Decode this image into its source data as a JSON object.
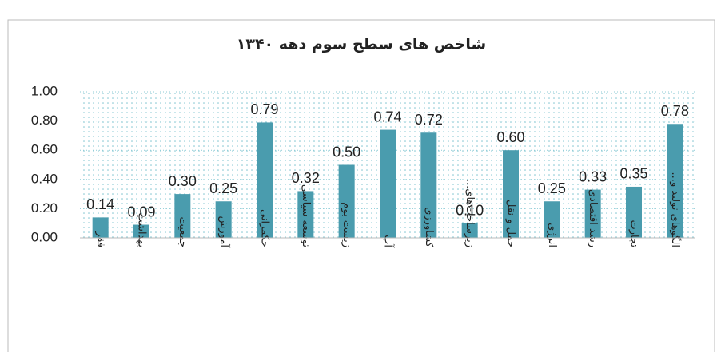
{
  "chart_data": {
    "type": "bar",
    "title": "شاخص های سطح سوم دهه ۱۳۴۰",
    "categories": [
      "فقر",
      "بهداشت",
      "جمعیت",
      "آموزش",
      "حکمرانی",
      "توسعه سیاسی",
      "زیست بوم",
      "آب",
      "کشاورزی",
      "زیرساخت‌های...",
      "حمل و نقل",
      "انرژی",
      "رشد اقتصادی",
      "تجارت",
      "الگوهای تولید و..."
    ],
    "values": [
      0.14,
      0.09,
      0.3,
      0.25,
      0.79,
      0.32,
      0.5,
      0.74,
      0.72,
      0.1,
      0.6,
      0.25,
      0.33,
      0.35,
      0.78
    ],
    "value_labels": [
      "0.14",
      "0.09",
      "0.30",
      "0.25",
      "0.79",
      "0.32",
      "0.50",
      "0.74",
      "0.72",
      "0.10",
      "0.60",
      "0.25",
      "0.33",
      "0.35",
      "0.78"
    ],
    "color": "#4a9cae",
    "ylim": [
      0,
      1
    ],
    "yticks": [
      {
        "value": 0,
        "label": "0.00"
      },
      {
        "value": 0.2,
        "label": "0.20"
      },
      {
        "value": 0.4,
        "label": "0.40"
      },
      {
        "value": 0.6,
        "label": "0.60"
      },
      {
        "value": 0.8,
        "label": "0.80"
      },
      {
        "value": 1,
        "label": "1.00"
      }
    ]
  }
}
